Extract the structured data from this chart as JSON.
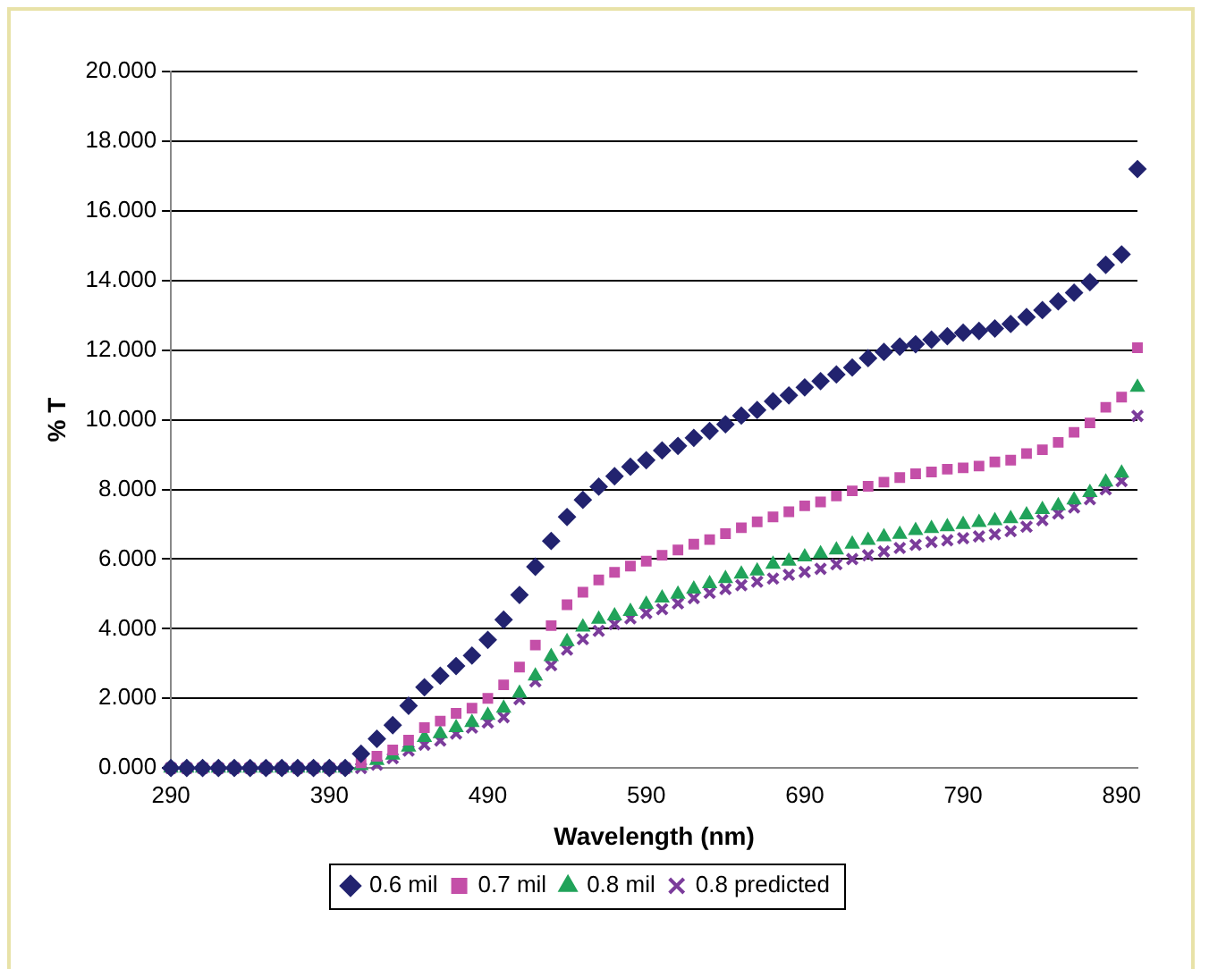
{
  "chart_data": {
    "type": "scatter",
    "xlabel": "Wavelength (nm)",
    "ylabel": "% T",
    "x": [
      290,
      300,
      310,
      320,
      330,
      340,
      350,
      360,
      370,
      380,
      390,
      400,
      410,
      420,
      430,
      440,
      450,
      460,
      470,
      480,
      490,
      500,
      510,
      520,
      530,
      540,
      550,
      560,
      570,
      580,
      590,
      600,
      610,
      620,
      630,
      640,
      650,
      660,
      670,
      680,
      690,
      700,
      710,
      720,
      730,
      740,
      750,
      760,
      770,
      780,
      790,
      800,
      810,
      820,
      830,
      840,
      850,
      860,
      870,
      880,
      890,
      900
    ],
    "series": [
      {
        "name": "0.6 mil",
        "color": "#22236f",
        "marker": "diamond",
        "values": [
          0,
          0,
          0,
          0,
          0,
          0,
          0,
          0,
          0,
          0,
          0,
          0,
          0.41,
          0.84,
          1.23,
          1.79,
          2.32,
          2.65,
          2.93,
          3.23,
          3.68,
          4.26,
          4.97,
          5.78,
          6.52,
          7.21,
          7.7,
          8.08,
          8.38,
          8.65,
          8.84,
          9.12,
          9.25,
          9.48,
          9.68,
          9.87,
          10.12,
          10.28,
          10.53,
          10.7,
          10.93,
          11.11,
          11.3,
          11.5,
          11.77,
          11.95,
          12.1,
          12.17,
          12.3,
          12.4,
          12.5,
          12.55,
          12.62,
          12.75,
          12.95,
          13.15,
          13.4,
          13.65,
          13.95,
          14.45,
          14.75,
          17.2
        ]
      },
      {
        "name": "0.7 mil",
        "color": "#c44fa8",
        "marker": "square",
        "values": [
          0,
          0,
          0,
          0,
          0,
          0,
          0,
          0,
          0,
          0,
          0,
          0,
          0.15,
          0.34,
          0.52,
          0.8,
          1.16,
          1.35,
          1.57,
          1.72,
          2.0,
          2.39,
          2.9,
          3.53,
          4.09,
          4.69,
          5.05,
          5.4,
          5.62,
          5.8,
          5.94,
          6.11,
          6.26,
          6.43,
          6.56,
          6.73,
          6.9,
          7.07,
          7.21,
          7.36,
          7.53,
          7.64,
          7.81,
          7.96,
          8.09,
          8.21,
          8.34,
          8.45,
          8.5,
          8.58,
          8.62,
          8.67,
          8.79,
          8.84,
          9.03,
          9.14,
          9.35,
          9.64,
          9.91,
          10.36,
          10.65,
          12.07
        ]
      },
      {
        "name": "0.8 mil",
        "color": "#21a35a",
        "marker": "triangle",
        "values": [
          0,
          0,
          0,
          0,
          0,
          0,
          0,
          0,
          0,
          0,
          0,
          0,
          0.07,
          0.22,
          0.37,
          0.6,
          0.88,
          0.99,
          1.16,
          1.31,
          1.51,
          1.72,
          2.15,
          2.64,
          3.2,
          3.63,
          4.05,
          4.27,
          4.37,
          4.5,
          4.7,
          4.88,
          4.99,
          5.14,
          5.29,
          5.44,
          5.57,
          5.66,
          5.85,
          5.94,
          6.06,
          6.15,
          6.26,
          6.43,
          6.54,
          6.64,
          6.71,
          6.82,
          6.88,
          6.93,
          6.99,
          7.05,
          7.1,
          7.16,
          7.27,
          7.42,
          7.53,
          7.7,
          7.91,
          8.21,
          8.47,
          10.93
        ]
      },
      {
        "name": "0.8 predicted",
        "color": "#7b3c9b",
        "marker": "cross",
        "values": [
          0,
          0,
          0,
          0,
          0,
          0,
          0,
          0,
          0,
          0,
          0,
          0,
          0,
          0.1,
          0.28,
          0.5,
          0.67,
          0.79,
          0.99,
          1.16,
          1.31,
          1.46,
          1.98,
          2.49,
          2.95,
          3.4,
          3.7,
          3.94,
          4.13,
          4.3,
          4.45,
          4.56,
          4.73,
          4.88,
          5.03,
          5.14,
          5.25,
          5.35,
          5.44,
          5.55,
          5.63,
          5.72,
          5.85,
          6.0,
          6.11,
          6.22,
          6.32,
          6.41,
          6.49,
          6.54,
          6.6,
          6.65,
          6.71,
          6.8,
          6.93,
          7.12,
          7.31,
          7.48,
          7.72,
          8.0,
          8.24,
          10.11
        ]
      }
    ],
    "xlim": [
      290,
      900
    ],
    "xticks": [
      290,
      390,
      490,
      590,
      690,
      790,
      890
    ],
    "ylim": [
      0,
      20
    ],
    "yticks": [
      {
        "value": 0,
        "label": "0.000"
      },
      {
        "value": 2,
        "label": "2.000"
      },
      {
        "value": 4,
        "label": "4.000"
      },
      {
        "value": 6,
        "label": "6.000"
      },
      {
        "value": 8,
        "label": "8.000"
      },
      {
        "value": 10,
        "label": "10.000"
      },
      {
        "value": 12,
        "label": "12.000"
      },
      {
        "value": 14,
        "label": "14.000"
      },
      {
        "value": 16,
        "label": "16.000"
      },
      {
        "value": 18,
        "label": "18.000"
      },
      {
        "value": 20,
        "label": "20.000"
      }
    ],
    "grid": "y",
    "legend": "bottom"
  }
}
